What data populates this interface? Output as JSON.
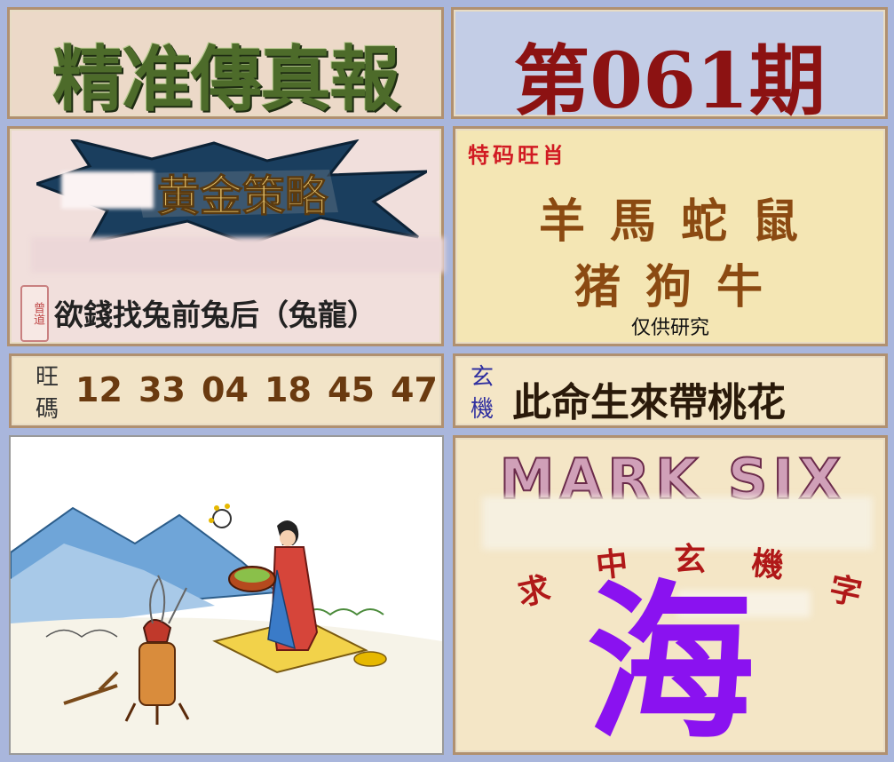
{
  "header": {
    "title": "精准傳真報",
    "issue": "第061期"
  },
  "golden": {
    "banner_text": "黄金策略",
    "stamp_text": "曾道",
    "hint": "欲錢找兔前兔后（兔龍）"
  },
  "zodiac": {
    "label": "特码旺肖",
    "row1": [
      "羊",
      "馬",
      "蛇",
      "鼠"
    ],
    "row2": [
      "猪",
      "狗",
      "牛"
    ],
    "note": "仅供研究"
  },
  "numbers": {
    "label": "旺碼",
    "values": [
      "12",
      "33",
      "04",
      "18",
      "45",
      "47"
    ]
  },
  "mystic": {
    "label": "玄機",
    "text": "此命生來帶桃花"
  },
  "marksix": {
    "logo_text": "MARK SIX",
    "hint_chars": [
      "求",
      "中",
      "玄",
      "機",
      "字"
    ],
    "answer": "海"
  },
  "colors": {
    "background": "#a9b6dc",
    "title_green": "#4d6b2a",
    "issue_red": "#8c1212",
    "answer_purple": "#8a12f0"
  }
}
